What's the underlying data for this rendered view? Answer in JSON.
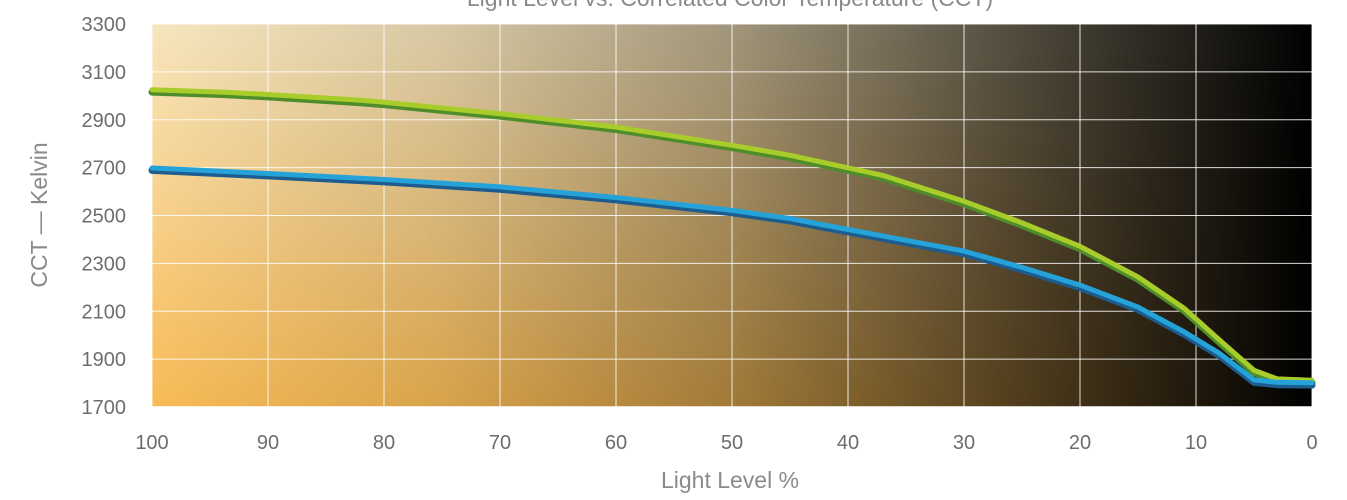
{
  "chart_data": {
    "type": "line",
    "title": "Light Level vs. Correlated Color Temperature (CCT)",
    "xlabel": "Light Level %",
    "ylabel": "CCT — Kelvin",
    "xlim": [
      100,
      0
    ],
    "ylim": [
      1700,
      3300
    ],
    "x_reversed": true,
    "x_ticks": [
      100,
      90,
      80,
      70,
      60,
      50,
      40,
      30,
      20,
      10,
      0
    ],
    "y_ticks": [
      1700,
      1900,
      2100,
      2300,
      2500,
      2700,
      2900,
      3100,
      3300
    ],
    "grid": true,
    "background_gradient": {
      "top_left": "#f7e6be",
      "bottom_left": "#f8bb55",
      "right": "#000000"
    },
    "series": [
      {
        "name": "",
        "color": "#a8cc2a",
        "edge_color": "#4e8d2a",
        "points": [
          {
            "x": 100,
            "y": 3022
          },
          {
            "x": 94,
            "y": 3012
          },
          {
            "x": 90,
            "y": 3002
          },
          {
            "x": 82,
            "y": 2978
          },
          {
            "x": 80,
            "y": 2970
          },
          {
            "x": 70,
            "y": 2922
          },
          {
            "x": 60,
            "y": 2866
          },
          {
            "x": 50,
            "y": 2790
          },
          {
            "x": 45,
            "y": 2748
          },
          {
            "x": 40,
            "y": 2696
          },
          {
            "x": 37,
            "y": 2664
          },
          {
            "x": 30,
            "y": 2556
          },
          {
            "x": 25,
            "y": 2466
          },
          {
            "x": 20,
            "y": 2368
          },
          {
            "x": 15,
            "y": 2240
          },
          {
            "x": 11,
            "y": 2108
          },
          {
            "x": 8,
            "y": 1978
          },
          {
            "x": 5,
            "y": 1850
          },
          {
            "x": 3,
            "y": 1814
          },
          {
            "x": 0,
            "y": 1808
          }
        ]
      },
      {
        "name": "",
        "color": "#25a3d9",
        "edge_color": "#1d5c8e",
        "points": [
          {
            "x": 100,
            "y": 2695
          },
          {
            "x": 90,
            "y": 2672
          },
          {
            "x": 80,
            "y": 2647
          },
          {
            "x": 70,
            "y": 2616
          },
          {
            "x": 60,
            "y": 2572
          },
          {
            "x": 50,
            "y": 2518
          },
          {
            "x": 45,
            "y": 2484
          },
          {
            "x": 40,
            "y": 2438
          },
          {
            "x": 30,
            "y": 2348
          },
          {
            "x": 25,
            "y": 2280
          },
          {
            "x": 20,
            "y": 2206
          },
          {
            "x": 15,
            "y": 2114
          },
          {
            "x": 11,
            "y": 2010
          },
          {
            "x": 8,
            "y": 1922
          },
          {
            "x": 5,
            "y": 1810
          },
          {
            "x": 3,
            "y": 1800
          },
          {
            "x": 0,
            "y": 1798
          }
        ]
      }
    ]
  }
}
